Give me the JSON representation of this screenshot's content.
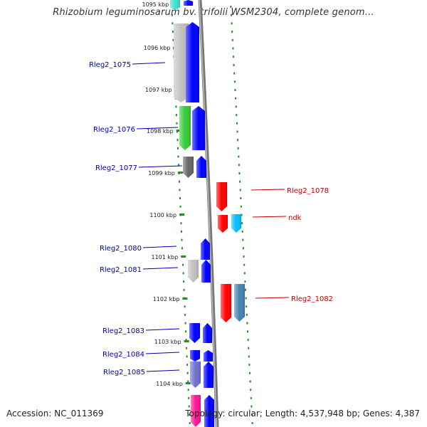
{
  "header": {
    "title": "Rhizobium leguminosarum bv. trifolii WSM2304, complete genom..."
  },
  "footer": {
    "accession": "Accession: NC_011369",
    "summary": "Topology: circular; Length: 4,537,948 bp; Genes: 4,387"
  },
  "scale_labels": [
    "1095 kbp",
    "1096 kbp",
    "1097 kbp",
    "1098 kbp",
    "1099 kbp",
    "1100 kbp",
    "1101 kbp",
    "1102 kbp",
    "1103 kbp",
    "1104 kbp"
  ],
  "colors": {
    "forward_label": "#0000b0",
    "reverse_label": "#c00000",
    "backbone": "#8a8a8a",
    "tick": "#2a8a2a"
  },
  "genes": [
    {
      "id": "top-cyan",
      "color": "#40e0d0",
      "strand": "-",
      "label": ""
    },
    {
      "id": "top-blue",
      "color": "#0000ff",
      "strand": "+",
      "label": ""
    },
    {
      "id": "Rleg2_1075-a",
      "color": "#c0c0c0",
      "strand": "-",
      "label": "Rleg2_1075"
    },
    {
      "id": "Rleg2_1075-b",
      "color": "#0000ff",
      "strand": "+",
      "label": ""
    },
    {
      "id": "Rleg2_1076-a",
      "color": "#33cc33",
      "strand": "-",
      "label": "Rleg2_1076"
    },
    {
      "id": "Rleg2_1076-b",
      "color": "#0000ff",
      "strand": "+",
      "label": ""
    },
    {
      "id": "Rleg2_1077-a",
      "color": "#666666",
      "strand": "-",
      "label": "Rleg2_1077"
    },
    {
      "id": "Rleg2_1077-b",
      "color": "#0000ff",
      "strand": "+",
      "label": ""
    },
    {
      "id": "Rleg2_1078",
      "color": "#ff0000",
      "strand": "-",
      "label": "Rleg2_1078"
    },
    {
      "id": "ndk-a",
      "color": "#ff0000",
      "strand": "-",
      "label": "ndk"
    },
    {
      "id": "ndk-b",
      "color": "#00bfff",
      "strand": "-",
      "label": ""
    },
    {
      "id": "Rleg2_1080",
      "color": "#0000ff",
      "strand": "+",
      "label": "Rleg2_1080"
    },
    {
      "id": "Rleg2_1081-a",
      "color": "#c0c0c0",
      "strand": "-",
      "label": "Rleg2_1081"
    },
    {
      "id": "Rleg2_1081-b",
      "color": "#0000ff",
      "strand": "+",
      "label": ""
    },
    {
      "id": "Rleg2_1082-a",
      "color": "#ff0000",
      "strand": "-",
      "label": "Rleg2_1082"
    },
    {
      "id": "Rleg2_1082-b",
      "color": "#4682b4",
      "strand": "-",
      "label": ""
    },
    {
      "id": "Rleg2_1083-a",
      "color": "#0000ff",
      "strand": "-",
      "label": "Rleg2_1083"
    },
    {
      "id": "Rleg2_1083-b",
      "color": "#0000ff",
      "strand": "+",
      "label": ""
    },
    {
      "id": "Rleg2_1084-a",
      "color": "#0000ff",
      "strand": "-",
      "label": "Rleg2_1084"
    },
    {
      "id": "Rleg2_1084-b",
      "color": "#0000ff",
      "strand": "+",
      "label": ""
    },
    {
      "id": "Rleg2_1085-a",
      "color": "#7070d0",
      "strand": "-",
      "label": "Rleg2_1085"
    },
    {
      "id": "Rleg2_1085-b",
      "color": "#0000ff",
      "strand": "+",
      "label": ""
    },
    {
      "id": "bottom-pink",
      "color": "#ff1493",
      "strand": "-",
      "label": ""
    },
    {
      "id": "bottom-blue",
      "color": "#0000ff",
      "strand": "+",
      "label": ""
    }
  ]
}
